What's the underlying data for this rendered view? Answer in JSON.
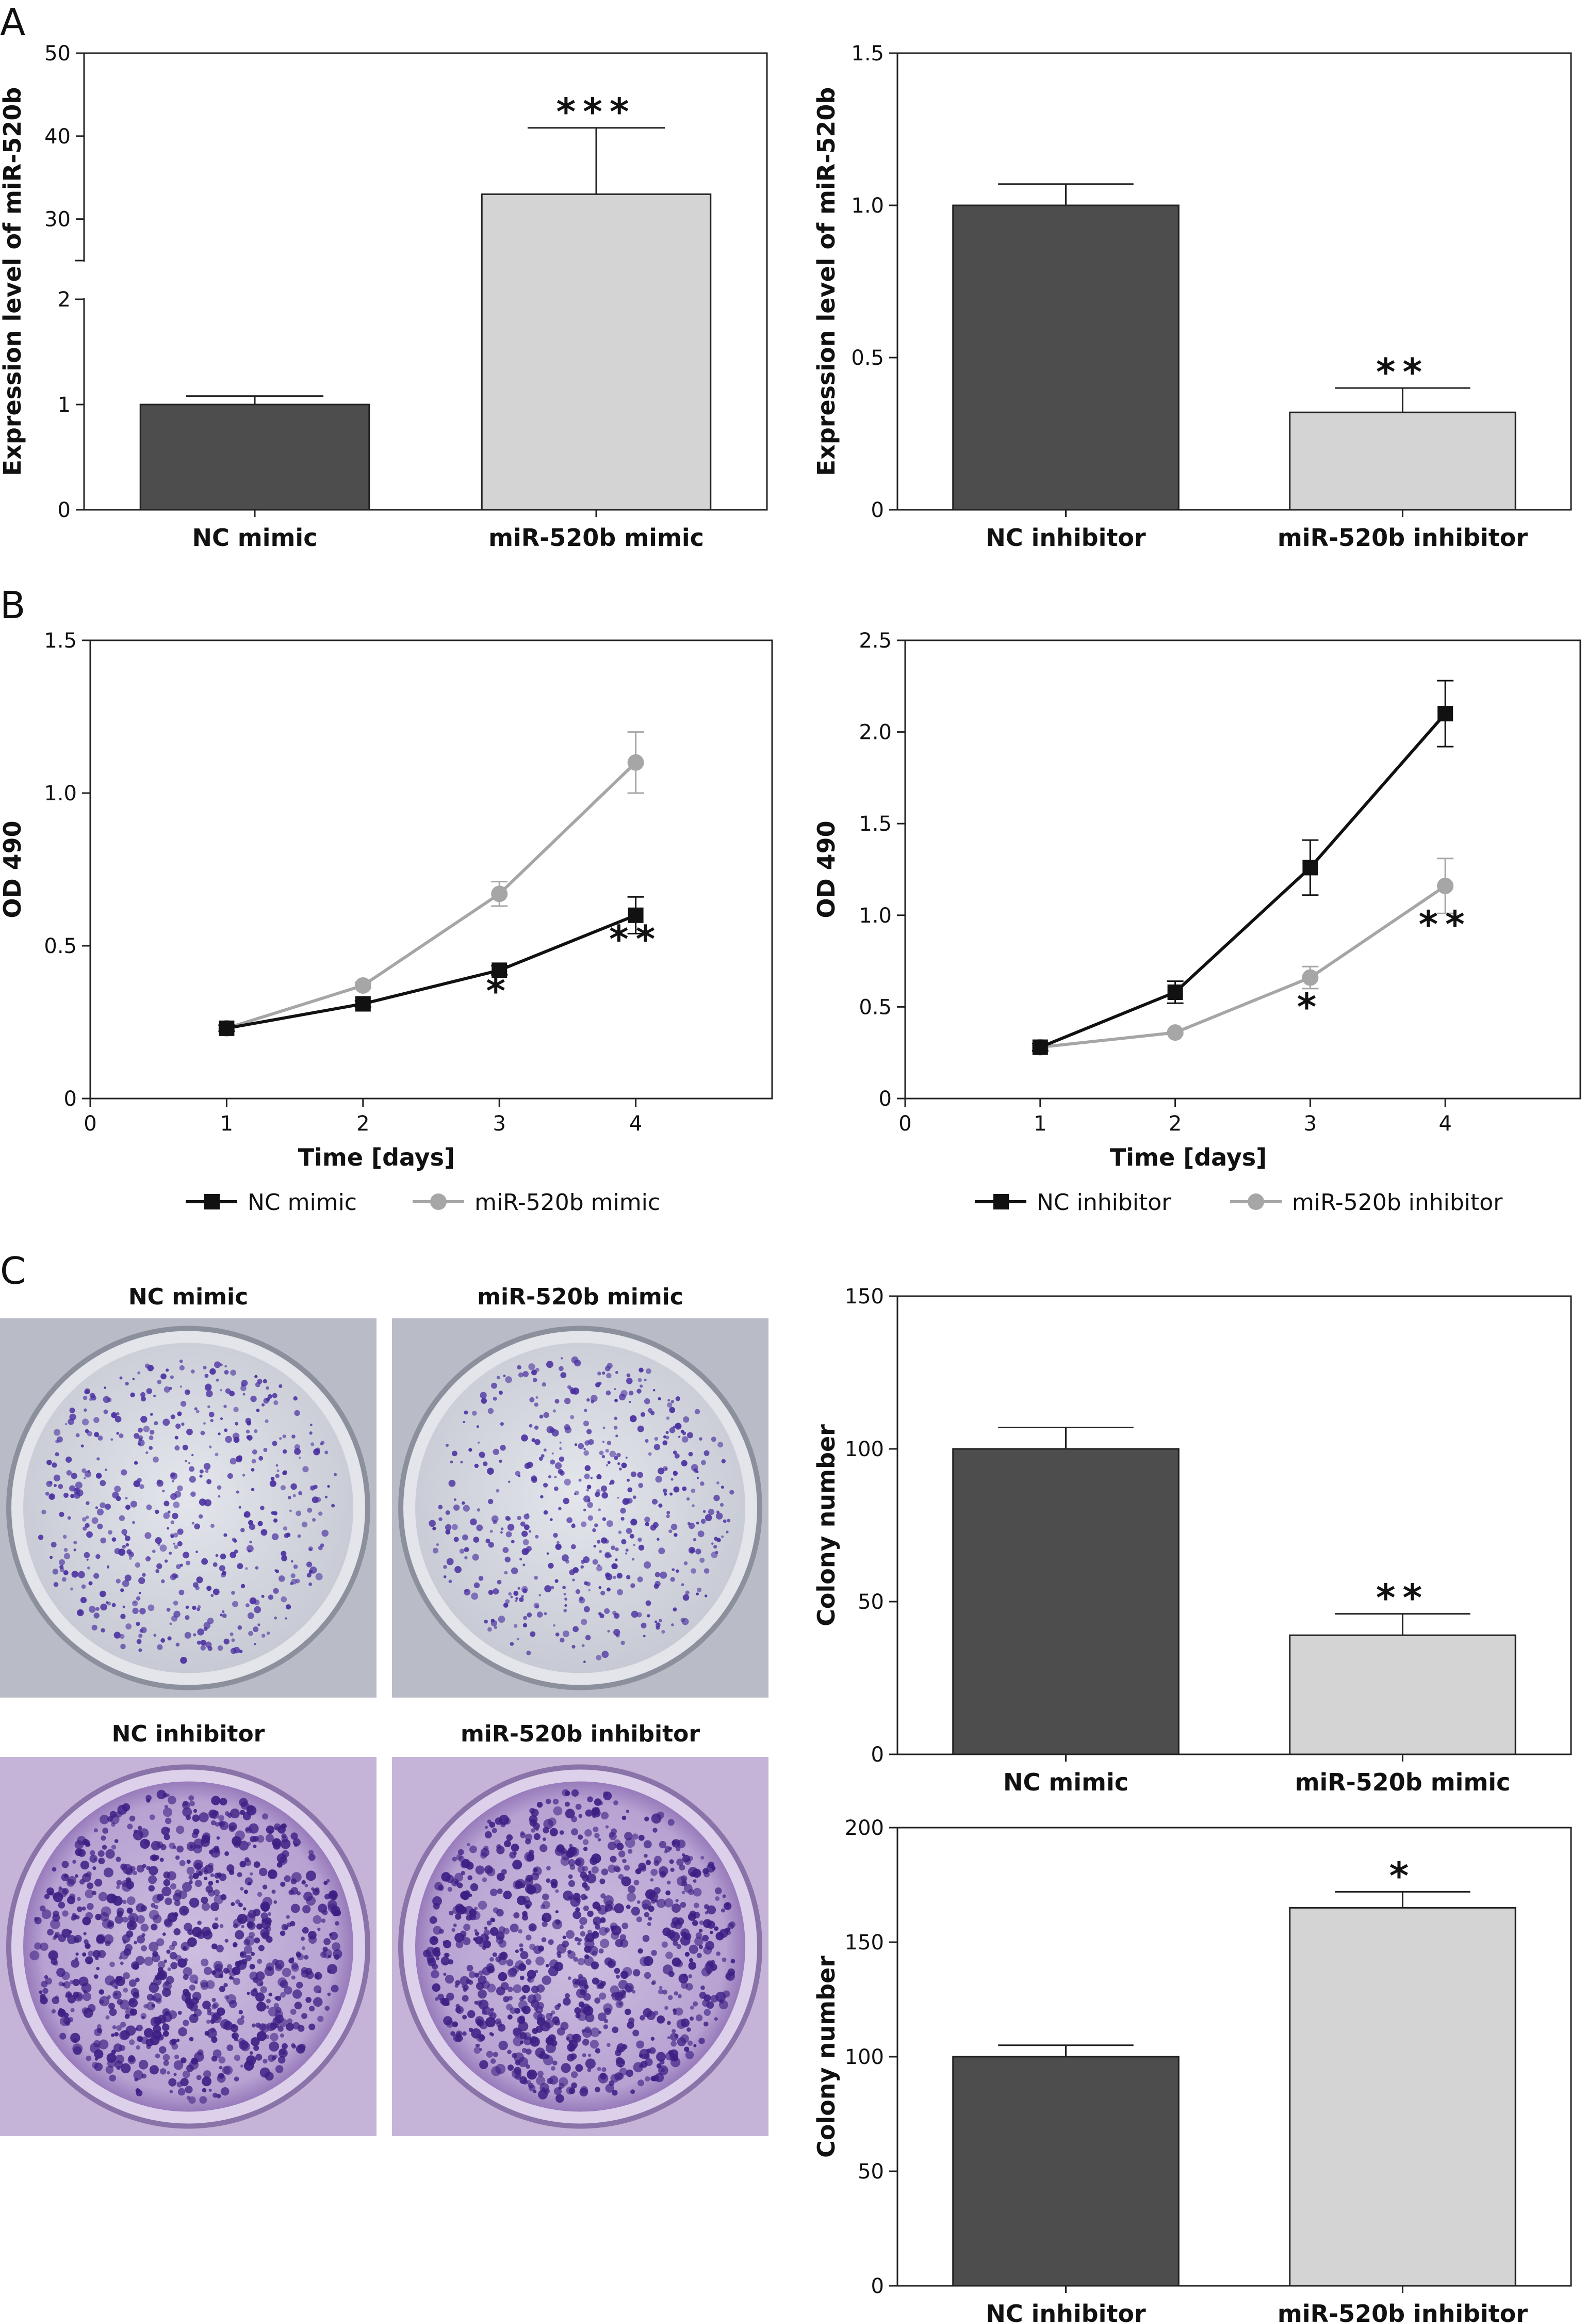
{
  "panels": {
    "A": {
      "label": "A",
      "charts": [
        {
          "id": "a-left",
          "type": "bar",
          "ylabel": "Expression level of miR-520b",
          "categories": [
            "NC mimic",
            "miR-520b mimic"
          ],
          "values": [
            1.0,
            33
          ],
          "errors": [
            0.08,
            8
          ],
          "colors": [
            "#4d4d4d",
            "#d4d4d4"
          ],
          "significance": [
            "",
            "***"
          ],
          "broken_axis": true,
          "lower_ticks": [
            "0",
            "1",
            "2"
          ],
          "upper_ticks": [
            "30",
            "40",
            "50"
          ]
        },
        {
          "id": "a-right",
          "type": "bar",
          "ylabel": "Expression level of miR-520b",
          "categories": [
            "NC inhibitor",
            "miR-520b inhibitor"
          ],
          "values": [
            1.0,
            0.32
          ],
          "errors": [
            0.07,
            0.08
          ],
          "colors": [
            "#4d4d4d",
            "#d4d4d4"
          ],
          "significance": [
            "",
            "**"
          ],
          "ylim": [
            0,
            1.5
          ],
          "yticks": [
            "0",
            "0.5",
            "1.0",
            "1.5"
          ]
        }
      ]
    },
    "B": {
      "label": "B",
      "charts": [
        {
          "id": "b-left",
          "type": "line",
          "ylabel": "OD 490",
          "xlabel": "Time [days]",
          "xlim": [
            0,
            5
          ],
          "ylim": [
            0,
            1.5
          ],
          "xticks": [
            "0",
            "1",
            "2",
            "3",
            "4"
          ],
          "yticks": [
            "0",
            "0.5",
            "1.0",
            "1.5"
          ],
          "x": [
            1,
            2,
            3,
            4
          ],
          "series": [
            {
              "name": "NC mimic",
              "values": [
                0.23,
                0.31,
                0.42,
                0.6
              ],
              "errors": [
                0.01,
                0.01,
                0.015,
                0.06
              ],
              "color": "#111111",
              "marker": "square"
            },
            {
              "name": "miR-520b mimic",
              "values": [
                0.23,
                0.37,
                0.67,
                1.1
              ],
              "errors": [
                0.01,
                0.01,
                0.04,
                0.1
              ],
              "color": "#a6a6a6",
              "marker": "circle"
            }
          ],
          "annotations": [
            {
              "x": 3,
              "y": 0.31,
              "text": "*"
            },
            {
              "x": 4,
              "y": 0.48,
              "text": "**"
            }
          ]
        },
        {
          "id": "b-right",
          "type": "line",
          "ylabel": "OD 490",
          "xlabel": "Time [days]",
          "xlim": [
            0,
            5
          ],
          "ylim": [
            0,
            2.5
          ],
          "xticks": [
            "0",
            "1",
            "2",
            "3",
            "4"
          ],
          "yticks": [
            "0",
            "0.5",
            "1.0",
            "1.5",
            "2.0",
            "2.5"
          ],
          "x": [
            1,
            2,
            3,
            4
          ],
          "series": [
            {
              "name": "NC inhibitor",
              "values": [
                0.28,
                0.58,
                1.26,
                2.1
              ],
              "errors": [
                0.02,
                0.06,
                0.15,
                0.18
              ],
              "color": "#111111",
              "marker": "square"
            },
            {
              "name": "miR-520b inhibitor",
              "values": [
                0.28,
                0.36,
                0.66,
                1.16
              ],
              "errors": [
                0.01,
                0.01,
                0.06,
                0.15
              ],
              "color": "#a6a6a6",
              "marker": "circle"
            }
          ],
          "annotations": [
            {
              "x": 3,
              "y": 0.43,
              "text": "*"
            },
            {
              "x": 4,
              "y": 0.88,
              "text": "**"
            }
          ]
        }
      ]
    },
    "C": {
      "label": "C",
      "plates": [
        {
          "title": "NC mimic",
          "style": "light"
        },
        {
          "title": "miR-520b mimic",
          "style": "light2"
        },
        {
          "title": "NC inhibitor",
          "style": "purple"
        },
        {
          "title": "miR-520b inhibitor",
          "style": "purple2"
        }
      ],
      "charts": [
        {
          "id": "c-top",
          "type": "bar",
          "ylabel": "Colony number",
          "categories": [
            "NC mimic",
            "miR-520b mimic"
          ],
          "values": [
            100,
            39
          ],
          "errors": [
            7,
            7
          ],
          "colors": [
            "#4d4d4d",
            "#d4d4d4"
          ],
          "significance": [
            "",
            "**"
          ],
          "ylim": [
            0,
            150
          ],
          "yticks": [
            "0",
            "50",
            "100",
            "150"
          ]
        },
        {
          "id": "c-bottom",
          "type": "bar",
          "ylabel": "Colony number",
          "categories": [
            "NC inhibitor",
            "miR-520b inhibitor"
          ],
          "values": [
            100,
            165
          ],
          "errors": [
            5,
            7
          ],
          "colors": [
            "#4d4d4d",
            "#d4d4d4"
          ],
          "significance": [
            "",
            "*"
          ],
          "ylim": [
            0,
            200
          ],
          "yticks": [
            "0",
            "50",
            "100",
            "150",
            "200"
          ]
        }
      ]
    }
  }
}
